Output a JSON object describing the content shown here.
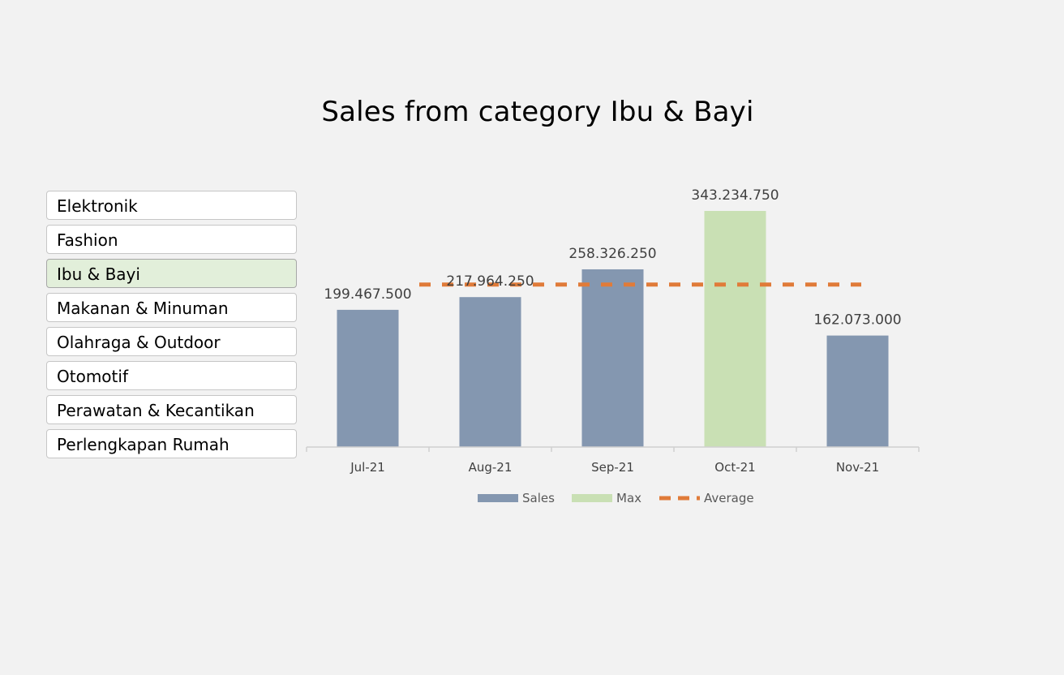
{
  "chart_title": "Sales from category Ibu & Bayi",
  "slicer": {
    "items": [
      {
        "label": "Elektronik",
        "selected": false
      },
      {
        "label": "Fashion",
        "selected": false
      },
      {
        "label": "Ibu & Bayi",
        "selected": true
      },
      {
        "label": "Makanan & Minuman",
        "selected": false
      },
      {
        "label": "Olahraga & Outdoor",
        "selected": false
      },
      {
        "label": "Otomotif",
        "selected": false
      },
      {
        "label": "Perawatan & Kecantikan",
        "selected": false
      },
      {
        "label": "Perlengkapan Rumah",
        "selected": false
      }
    ]
  },
  "chart_data": {
    "type": "bar",
    "title": "Sales from category Ibu & Bayi",
    "categories": [
      "Jul-21",
      "Aug-21",
      "Sep-21",
      "Oct-21",
      "Nov-21"
    ],
    "series": [
      {
        "name": "Sales",
        "type": "bar",
        "values": [
          199467500,
          217964250,
          258326250,
          null,
          162073000
        ],
        "color": "#8497b0"
      },
      {
        "name": "Max",
        "type": "bar",
        "values": [
          null,
          null,
          null,
          343234750,
          null
        ],
        "color": "#c9e0b4"
      },
      {
        "name": "Average",
        "type": "line",
        "style": "dashed",
        "values": [
          236213150,
          236213150,
          236213150,
          236213150,
          236213150
        ],
        "color": "#e07b39"
      }
    ],
    "data_labels": [
      "199.467.500",
      "217.964.250",
      "258.326.250",
      "343.234.750",
      "162.073.000"
    ],
    "ylim": [
      0,
      350000000
    ],
    "grid": false,
    "legend": "bottom"
  }
}
